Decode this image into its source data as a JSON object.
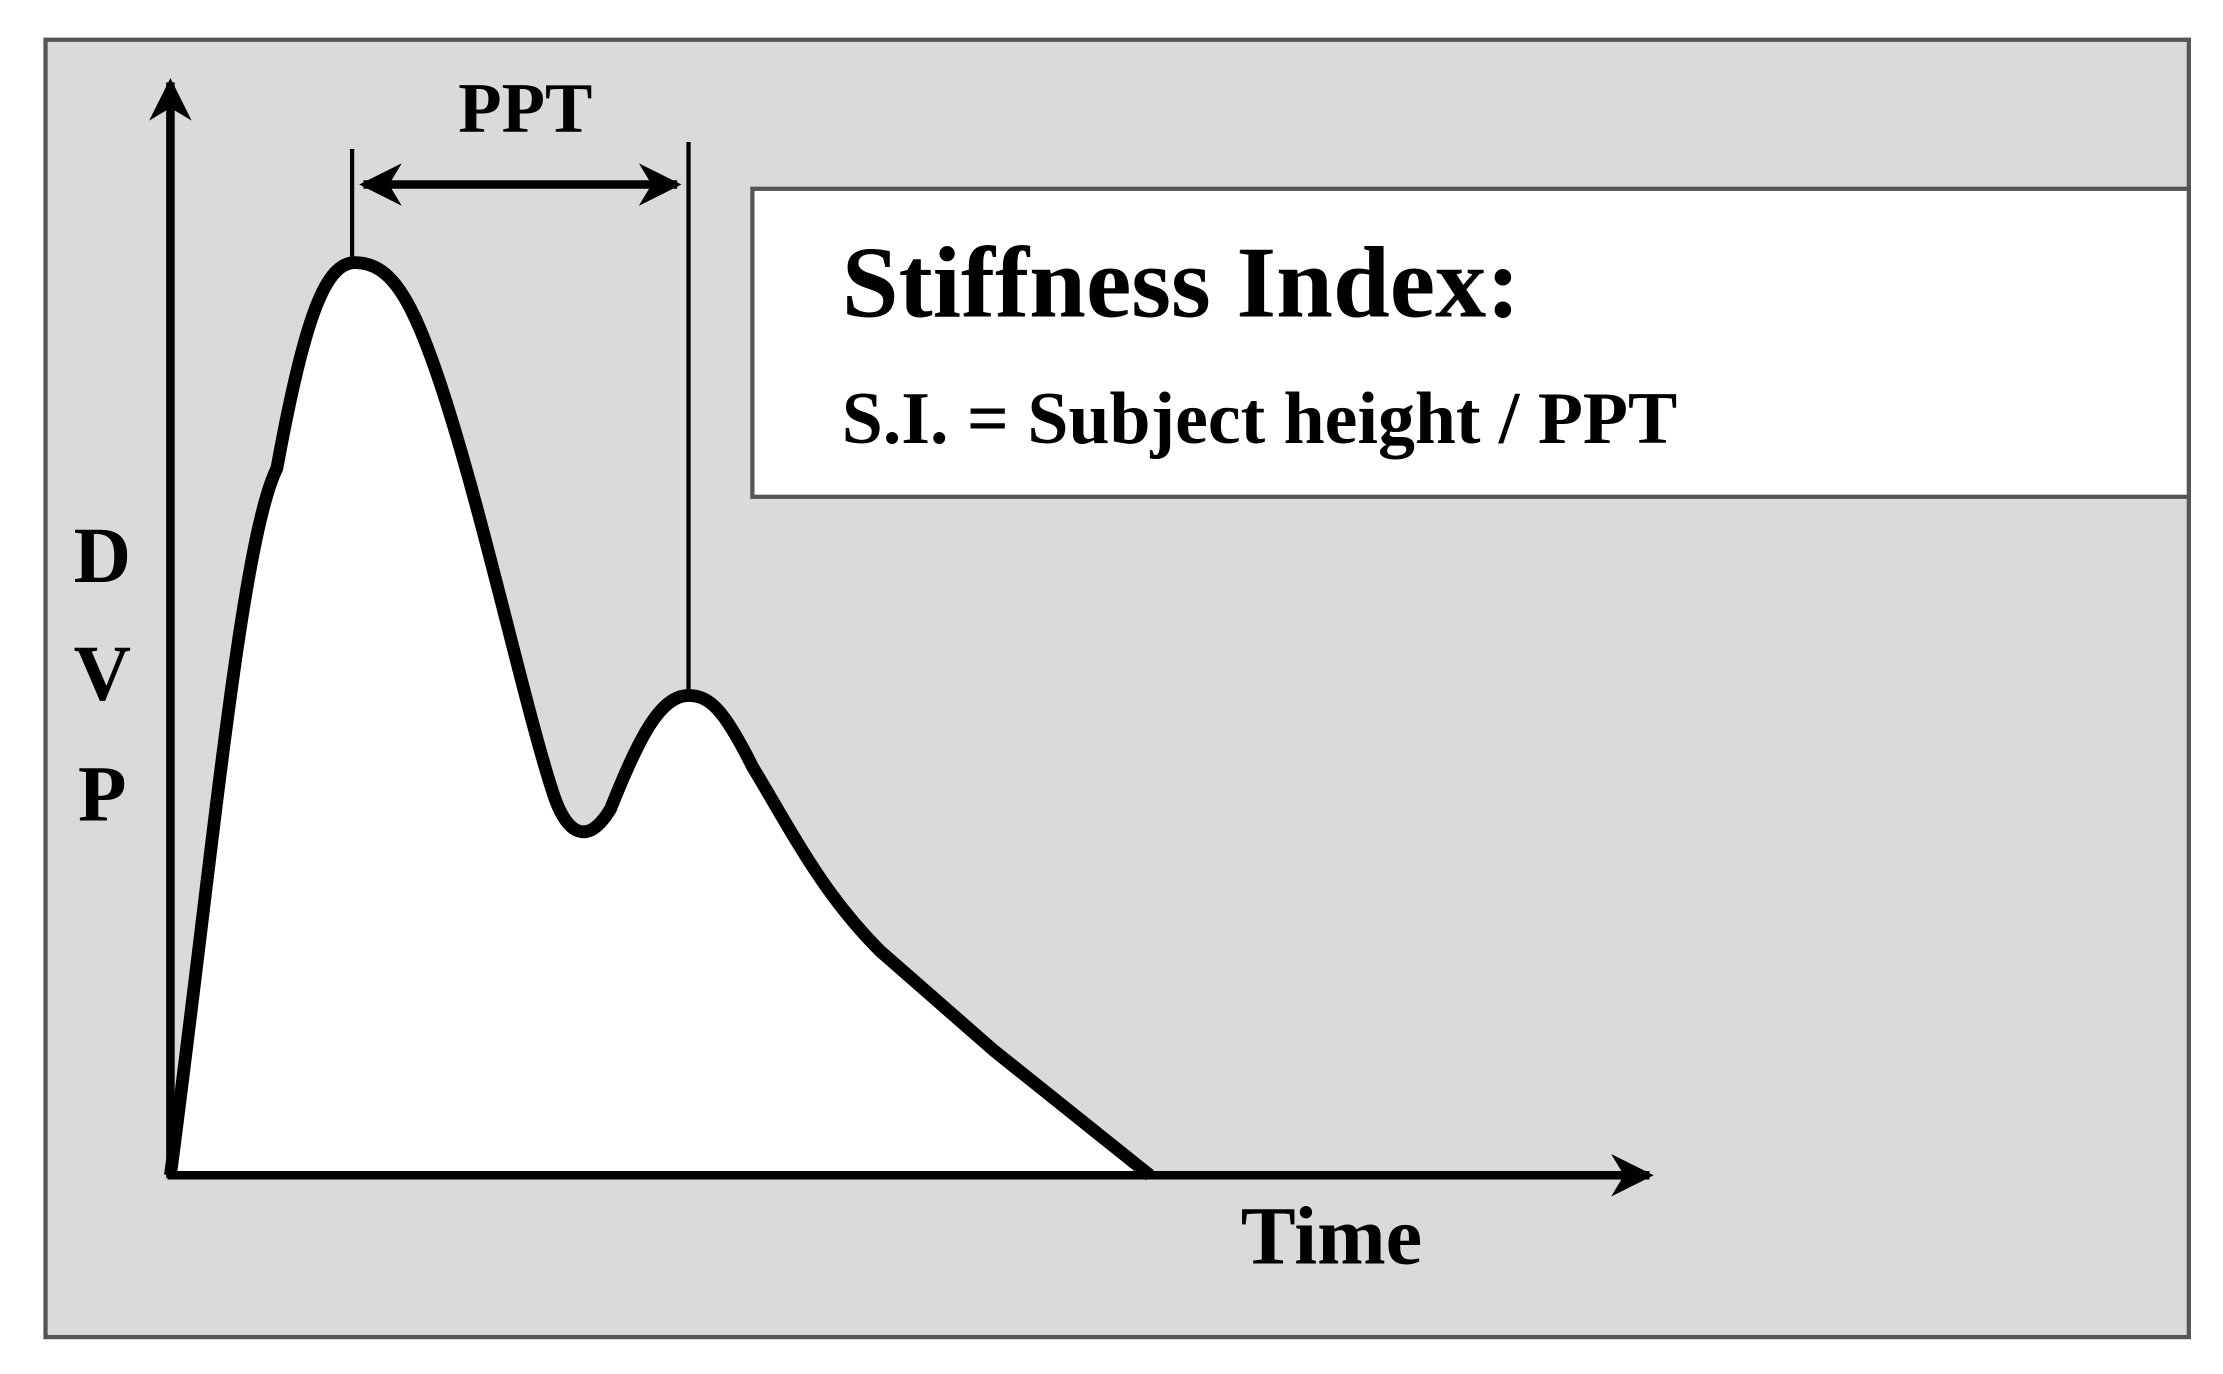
{
  "ppt_label": "PPT",
  "info_box": {
    "title": "Stiffness Index:",
    "formula": "S.I. = Subject height / PPT"
  },
  "y_axis_label": [
    "D",
    "V",
    "P"
  ],
  "x_axis_label": "Time"
}
